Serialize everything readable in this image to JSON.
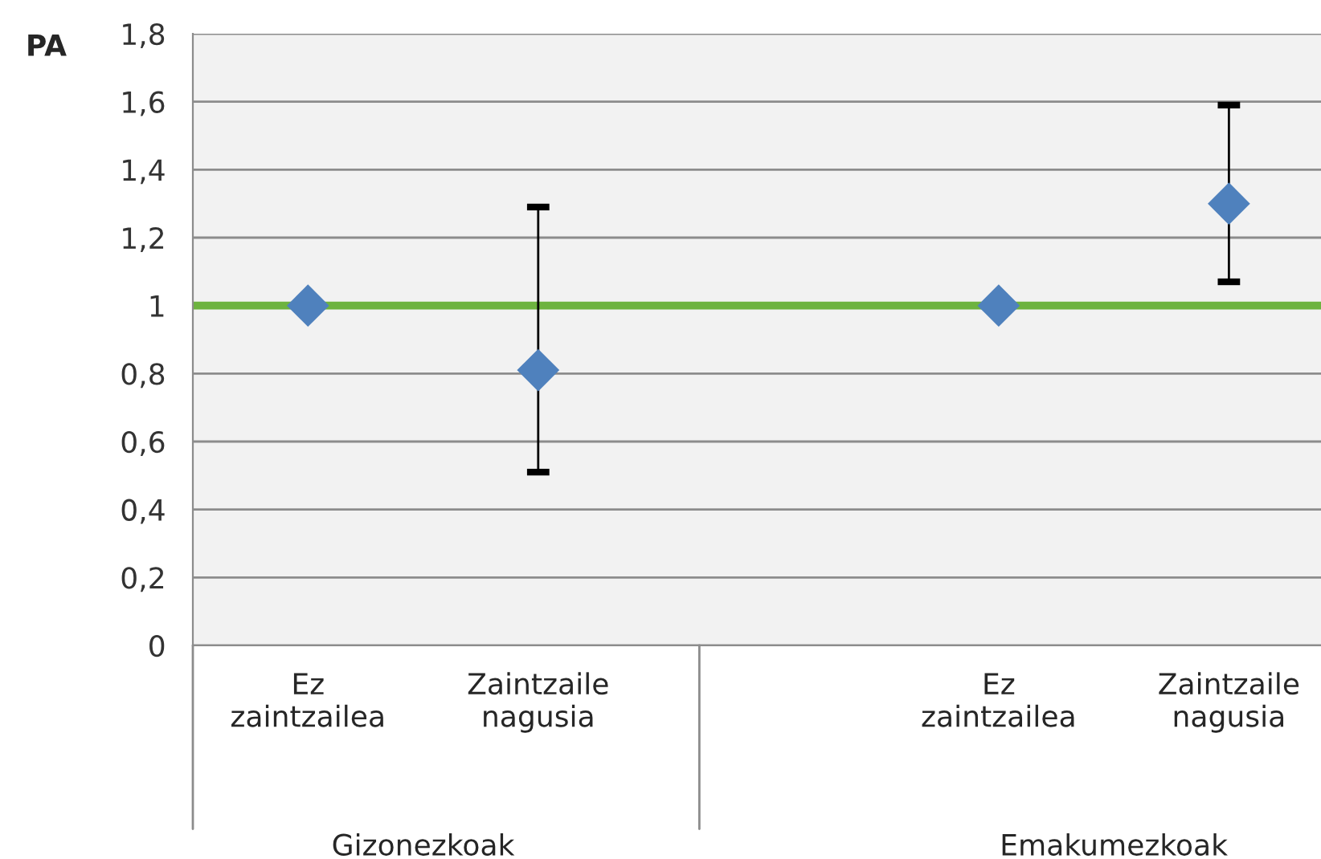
{
  "chart_data": {
    "type": "scatter",
    "ylabel": "PA",
    "categories": [
      "Ez\nzaintzailea",
      "Zaintzaile\nnagusia",
      null,
      "Ez\nzaintzailea",
      "Zaintzaile\nnagusia"
    ],
    "series": [
      {
        "color": "#4f81bd",
        "values": [
          1,
          0.81,
          null,
          1,
          1.3
        ],
        "errors": [
          null,
          [
            0.51,
            1.29
          ],
          null,
          null,
          [
            1.07,
            1.59
          ]
        ]
      }
    ],
    "marker": "diamond",
    "ylim": [
      0,
      1.8
    ],
    "yticks": [
      0,
      {
        "value": 0.2,
        "label": "0,2"
      },
      {
        "value": 0.4,
        "label": "0,4"
      },
      {
        "value": 0.6,
        "label": "0,6"
      },
      {
        "value": 0.8,
        "label": "0,8"
      },
      1,
      {
        "value": 1.2,
        "label": "1,2"
      },
      {
        "value": 1.4,
        "label": "1,4"
      },
      {
        "value": 1.6,
        "label": "1,6"
      },
      {
        "value": 1.8,
        "label": "1,8"
      }
    ],
    "ref_lines": [
      {
        "axis": "y",
        "value": 1,
        "color": "#6db33f"
      }
    ],
    "grid": "y",
    "annotations": [
      "Gizonezkoak",
      "Emakumezkoak"
    ]
  }
}
